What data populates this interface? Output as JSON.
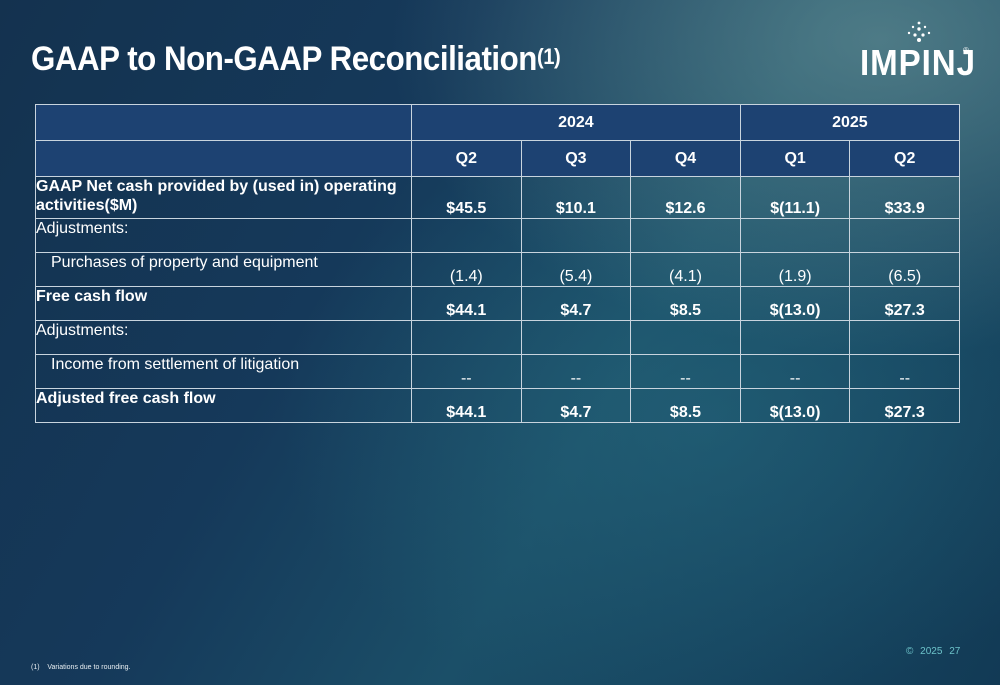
{
  "slide": {
    "title": "GAAP to Non-GAAP Reconciliation",
    "title_sup": "(1)"
  },
  "logo": {
    "text": "IMPINJ",
    "reg": "®",
    "icon": "impinj-dots-icon",
    "color": "#ffffff"
  },
  "table": {
    "years": [
      {
        "label": "2024",
        "span": 3
      },
      {
        "label": "2025",
        "span": 2
      }
    ],
    "quarters": [
      "Q2",
      "Q3",
      "Q4",
      "Q1",
      "Q2"
    ],
    "rows": [
      {
        "label": "GAAP Net cash provided by (used in) operating activities($M)",
        "values": [
          "$45.5",
          "$10.1",
          "$12.6",
          "$(11.1)",
          "$33.9"
        ],
        "style": "bold"
      },
      {
        "label": "Adjustments:",
        "values": [
          "",
          "",
          "",
          "",
          ""
        ],
        "style": "plain"
      },
      {
        "label": "Purchases of property and equipment",
        "values": [
          "(1.4)",
          "(5.4)",
          "(4.1)",
          "(1.9)",
          "(6.5)"
        ],
        "style": "indent"
      },
      {
        "label": "Free cash flow",
        "values": [
          "$44.1",
          "$4.7",
          "$8.5",
          "$(13.0)",
          "$27.3"
        ],
        "style": "bold"
      },
      {
        "label": "Adjustments:",
        "values": [
          "",
          "",
          "",
          "",
          ""
        ],
        "style": "plain"
      },
      {
        "label": "Income from settlement of litigation",
        "values": [
          "--",
          "--",
          "--",
          "--",
          "--"
        ],
        "style": "indent"
      },
      {
        "label": "Adjusted free cash flow",
        "values": [
          "$44.1",
          "$4.7",
          "$8.5",
          "$(13.0)",
          "$27.3"
        ],
        "style": "bold"
      }
    ],
    "header_color": "#1d4272",
    "border_color": "#c8d4de"
  },
  "footer": {
    "footnote_marker": "(1)",
    "footnote_text": "Variations due to rounding.",
    "copyright": "©",
    "year": "2025",
    "page": "27",
    "accent_color": "#6cc2c9"
  }
}
